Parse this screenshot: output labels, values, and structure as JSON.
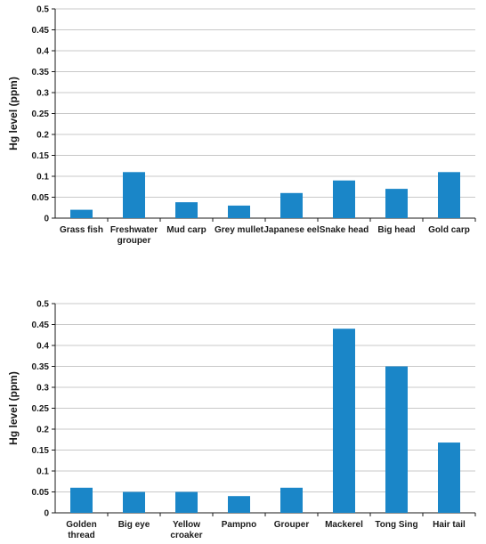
{
  "chart_data": [
    {
      "type": "bar",
      "title": "",
      "xlabel": "",
      "ylabel": "Hg level (ppm)",
      "ylim": [
        0,
        0.5
      ],
      "yticks": [
        "0",
        "0.05",
        "0.1",
        "0.15",
        "0.2",
        "0.25",
        "0.3",
        "0.35",
        "0.4",
        "0.45",
        "0.5"
      ],
      "grid": true,
      "bar_color": "#1a86c8",
      "categories": [
        "Grass fish",
        "Freshwater grouper",
        "Mud carp",
        "Grey mullet",
        "Japanese eel",
        "Snake head",
        "Big head",
        "Gold carp"
      ],
      "category_lines": [
        [
          "Grass fish"
        ],
        [
          "Freshwater",
          "grouper"
        ],
        [
          "Mud carp"
        ],
        [
          "Grey mullet"
        ],
        [
          "Japanese eel"
        ],
        [
          "Snake head"
        ],
        [
          "Big head"
        ],
        [
          "Gold carp"
        ]
      ],
      "values": [
        0.02,
        0.11,
        0.038,
        0.03,
        0.06,
        0.09,
        0.07,
        0.11
      ]
    },
    {
      "type": "bar",
      "title": "",
      "xlabel": "",
      "ylabel": "Hg level (ppm)",
      "ylim": [
        0,
        0.5
      ],
      "yticks": [
        "0",
        "0.05",
        "0.1",
        "0.15",
        "0.2",
        "0.25",
        "0.3",
        "0.35",
        "0.4",
        "0.45",
        "0.5"
      ],
      "grid": true,
      "bar_color": "#1a86c8",
      "categories": [
        "Golden thread",
        "Big eye",
        "Yellow croaker",
        "Pampno",
        "Grouper",
        "Mackerel",
        "Tong Sing",
        "Hair tail"
      ],
      "category_lines": [
        [
          "Golden",
          "thread"
        ],
        [
          "Big eye"
        ],
        [
          "Yellow",
          "croaker"
        ],
        [
          "Pampno"
        ],
        [
          "Grouper"
        ],
        [
          "Mackerel"
        ],
        [
          "Tong Sing"
        ],
        [
          "Hair tail"
        ]
      ],
      "values": [
        0.06,
        0.05,
        0.05,
        0.04,
        0.06,
        0.44,
        0.35,
        0.168
      ]
    }
  ]
}
